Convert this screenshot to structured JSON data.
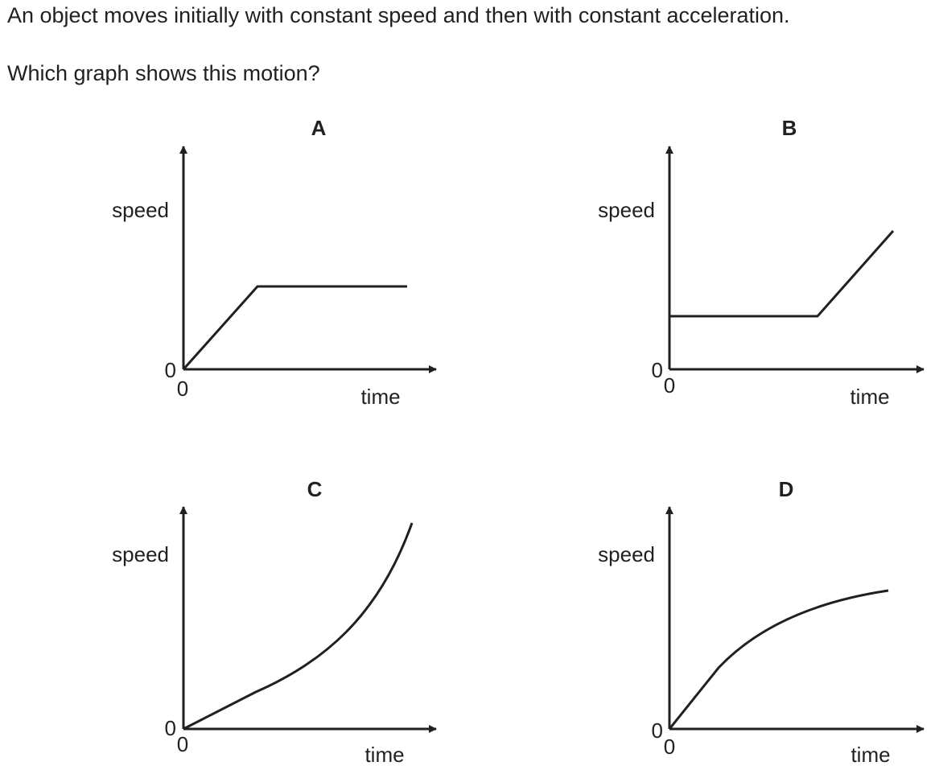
{
  "question": {
    "line1": "An object moves initially with constant speed and then with constant acceleration.",
    "line2": "Which graph shows this motion?"
  },
  "options": [
    {
      "id": "A",
      "label": "A",
      "ylabel": "speed",
      "xlabel": "time",
      "origin_y": "0",
      "origin_x": "0",
      "curve_shape": "linear increase from zero, then constant speed"
    },
    {
      "id": "B",
      "label": "B",
      "ylabel": "speed",
      "xlabel": "time",
      "origin_y": "0",
      "origin_x": "0",
      "curve_shape": "constant non-zero speed, then linear increase"
    },
    {
      "id": "C",
      "label": "C",
      "ylabel": "speed",
      "xlabel": "time",
      "origin_y": "0",
      "origin_x": "0",
      "curve_shape": "increase from zero with increasing gradient"
    },
    {
      "id": "D",
      "label": "D",
      "ylabel": "speed",
      "xlabel": "time",
      "origin_y": "0",
      "origin_x": "0",
      "curve_shape": "increase from zero with decreasing gradient"
    }
  ],
  "colors": {
    "ink": "#231f20"
  }
}
